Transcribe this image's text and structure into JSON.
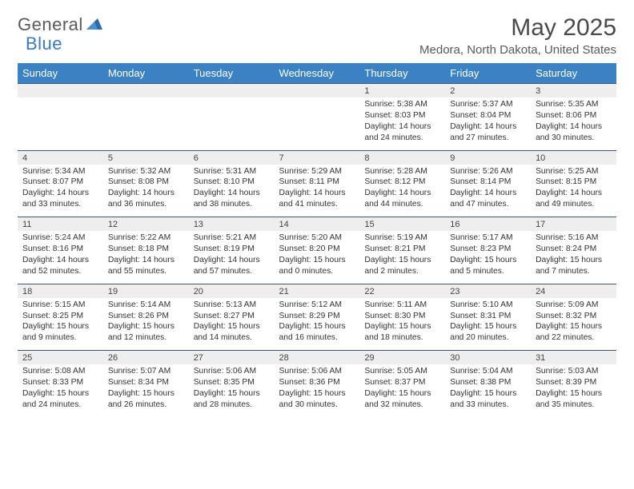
{
  "logo": {
    "part1": "General",
    "part2": "Blue"
  },
  "title": "May 2025",
  "location": "Medora, North Dakota, United States",
  "colors": {
    "header_bg": "#3b82c4",
    "header_fg": "#ffffff",
    "daynum_bg": "#eeeeee",
    "row_border": "#3b5a7a",
    "logo_gray": "#5a5a5a",
    "logo_blue": "#3b7bbf"
  },
  "days": [
    "Sunday",
    "Monday",
    "Tuesday",
    "Wednesday",
    "Thursday",
    "Friday",
    "Saturday"
  ],
  "weeks": [
    [
      null,
      null,
      null,
      null,
      {
        "n": "1",
        "sr": "Sunrise: 5:38 AM",
        "ss": "Sunset: 8:03 PM",
        "dl1": "Daylight: 14 hours",
        "dl2": "and 24 minutes."
      },
      {
        "n": "2",
        "sr": "Sunrise: 5:37 AM",
        "ss": "Sunset: 8:04 PM",
        "dl1": "Daylight: 14 hours",
        "dl2": "and 27 minutes."
      },
      {
        "n": "3",
        "sr": "Sunrise: 5:35 AM",
        "ss": "Sunset: 8:06 PM",
        "dl1": "Daylight: 14 hours",
        "dl2": "and 30 minutes."
      }
    ],
    [
      {
        "n": "4",
        "sr": "Sunrise: 5:34 AM",
        "ss": "Sunset: 8:07 PM",
        "dl1": "Daylight: 14 hours",
        "dl2": "and 33 minutes."
      },
      {
        "n": "5",
        "sr": "Sunrise: 5:32 AM",
        "ss": "Sunset: 8:08 PM",
        "dl1": "Daylight: 14 hours",
        "dl2": "and 36 minutes."
      },
      {
        "n": "6",
        "sr": "Sunrise: 5:31 AM",
        "ss": "Sunset: 8:10 PM",
        "dl1": "Daylight: 14 hours",
        "dl2": "and 38 minutes."
      },
      {
        "n": "7",
        "sr": "Sunrise: 5:29 AM",
        "ss": "Sunset: 8:11 PM",
        "dl1": "Daylight: 14 hours",
        "dl2": "and 41 minutes."
      },
      {
        "n": "8",
        "sr": "Sunrise: 5:28 AM",
        "ss": "Sunset: 8:12 PM",
        "dl1": "Daylight: 14 hours",
        "dl2": "and 44 minutes."
      },
      {
        "n": "9",
        "sr": "Sunrise: 5:26 AM",
        "ss": "Sunset: 8:14 PM",
        "dl1": "Daylight: 14 hours",
        "dl2": "and 47 minutes."
      },
      {
        "n": "10",
        "sr": "Sunrise: 5:25 AM",
        "ss": "Sunset: 8:15 PM",
        "dl1": "Daylight: 14 hours",
        "dl2": "and 49 minutes."
      }
    ],
    [
      {
        "n": "11",
        "sr": "Sunrise: 5:24 AM",
        "ss": "Sunset: 8:16 PM",
        "dl1": "Daylight: 14 hours",
        "dl2": "and 52 minutes."
      },
      {
        "n": "12",
        "sr": "Sunrise: 5:22 AM",
        "ss": "Sunset: 8:18 PM",
        "dl1": "Daylight: 14 hours",
        "dl2": "and 55 minutes."
      },
      {
        "n": "13",
        "sr": "Sunrise: 5:21 AM",
        "ss": "Sunset: 8:19 PM",
        "dl1": "Daylight: 14 hours",
        "dl2": "and 57 minutes."
      },
      {
        "n": "14",
        "sr": "Sunrise: 5:20 AM",
        "ss": "Sunset: 8:20 PM",
        "dl1": "Daylight: 15 hours",
        "dl2": "and 0 minutes."
      },
      {
        "n": "15",
        "sr": "Sunrise: 5:19 AM",
        "ss": "Sunset: 8:21 PM",
        "dl1": "Daylight: 15 hours",
        "dl2": "and 2 minutes."
      },
      {
        "n": "16",
        "sr": "Sunrise: 5:17 AM",
        "ss": "Sunset: 8:23 PM",
        "dl1": "Daylight: 15 hours",
        "dl2": "and 5 minutes."
      },
      {
        "n": "17",
        "sr": "Sunrise: 5:16 AM",
        "ss": "Sunset: 8:24 PM",
        "dl1": "Daylight: 15 hours",
        "dl2": "and 7 minutes."
      }
    ],
    [
      {
        "n": "18",
        "sr": "Sunrise: 5:15 AM",
        "ss": "Sunset: 8:25 PM",
        "dl1": "Daylight: 15 hours",
        "dl2": "and 9 minutes."
      },
      {
        "n": "19",
        "sr": "Sunrise: 5:14 AM",
        "ss": "Sunset: 8:26 PM",
        "dl1": "Daylight: 15 hours",
        "dl2": "and 12 minutes."
      },
      {
        "n": "20",
        "sr": "Sunrise: 5:13 AM",
        "ss": "Sunset: 8:27 PM",
        "dl1": "Daylight: 15 hours",
        "dl2": "and 14 minutes."
      },
      {
        "n": "21",
        "sr": "Sunrise: 5:12 AM",
        "ss": "Sunset: 8:29 PM",
        "dl1": "Daylight: 15 hours",
        "dl2": "and 16 minutes."
      },
      {
        "n": "22",
        "sr": "Sunrise: 5:11 AM",
        "ss": "Sunset: 8:30 PM",
        "dl1": "Daylight: 15 hours",
        "dl2": "and 18 minutes."
      },
      {
        "n": "23",
        "sr": "Sunrise: 5:10 AM",
        "ss": "Sunset: 8:31 PM",
        "dl1": "Daylight: 15 hours",
        "dl2": "and 20 minutes."
      },
      {
        "n": "24",
        "sr": "Sunrise: 5:09 AM",
        "ss": "Sunset: 8:32 PM",
        "dl1": "Daylight: 15 hours",
        "dl2": "and 22 minutes."
      }
    ],
    [
      {
        "n": "25",
        "sr": "Sunrise: 5:08 AM",
        "ss": "Sunset: 8:33 PM",
        "dl1": "Daylight: 15 hours",
        "dl2": "and 24 minutes."
      },
      {
        "n": "26",
        "sr": "Sunrise: 5:07 AM",
        "ss": "Sunset: 8:34 PM",
        "dl1": "Daylight: 15 hours",
        "dl2": "and 26 minutes."
      },
      {
        "n": "27",
        "sr": "Sunrise: 5:06 AM",
        "ss": "Sunset: 8:35 PM",
        "dl1": "Daylight: 15 hours",
        "dl2": "and 28 minutes."
      },
      {
        "n": "28",
        "sr": "Sunrise: 5:06 AM",
        "ss": "Sunset: 8:36 PM",
        "dl1": "Daylight: 15 hours",
        "dl2": "and 30 minutes."
      },
      {
        "n": "29",
        "sr": "Sunrise: 5:05 AM",
        "ss": "Sunset: 8:37 PM",
        "dl1": "Daylight: 15 hours",
        "dl2": "and 32 minutes."
      },
      {
        "n": "30",
        "sr": "Sunrise: 5:04 AM",
        "ss": "Sunset: 8:38 PM",
        "dl1": "Daylight: 15 hours",
        "dl2": "and 33 minutes."
      },
      {
        "n": "31",
        "sr": "Sunrise: 5:03 AM",
        "ss": "Sunset: 8:39 PM",
        "dl1": "Daylight: 15 hours",
        "dl2": "and 35 minutes."
      }
    ]
  ]
}
